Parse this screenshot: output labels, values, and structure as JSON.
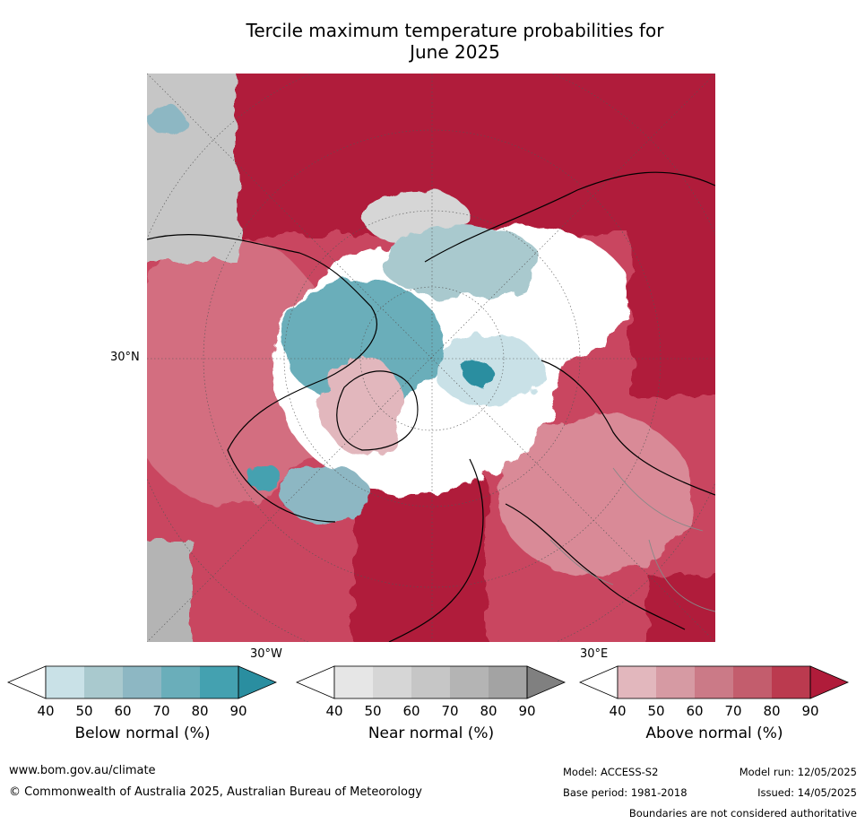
{
  "title_line1": "Tercile maximum temperature probabilities for",
  "title_line2": "June 2025",
  "graticule_labels": {
    "lat": "30°N",
    "lon_west": "30°W",
    "lon_east": "30°E"
  },
  "colorbars": [
    {
      "id": "below",
      "label": "Below normal (%)",
      "ticks": [
        "40",
        "50",
        "60",
        "70",
        "80",
        "90"
      ],
      "colors": [
        "#ffffff",
        "#c9e1e7",
        "#a9c9ce",
        "#8db7c3",
        "#6aaeba",
        "#44a1b0",
        "#2a8ea0"
      ]
    },
    {
      "id": "near",
      "label": "Near normal (%)",
      "ticks": [
        "40",
        "50",
        "60",
        "70",
        "80",
        "90"
      ],
      "colors": [
        "#ffffff",
        "#e6e6e6",
        "#d6d6d6",
        "#c6c6c6",
        "#b4b4b4",
        "#a3a3a3",
        "#808080"
      ]
    },
    {
      "id": "above",
      "label": "Above normal (%)",
      "ticks": [
        "40",
        "50",
        "60",
        "70",
        "80",
        "90"
      ],
      "colors": [
        "#ffffff",
        "#e2b7bd",
        "#d69aa3",
        "#cb7a87",
        "#c35d6d",
        "#bb3a4f",
        "#b01c3a"
      ]
    }
  ],
  "footer": {
    "url": "www.bom.gov.au/climate",
    "copyright": "© Commonwealth of Australia 2025, Australian Bureau of Meteorology",
    "model": "Model: ACCESS-S2",
    "base_period": "Base period: 1981-2018",
    "model_run": "Model run: 12/05/2025",
    "issued": "Issued: 14/05/2025",
    "disclaimer": "Boundaries are not considered authoritative"
  }
}
